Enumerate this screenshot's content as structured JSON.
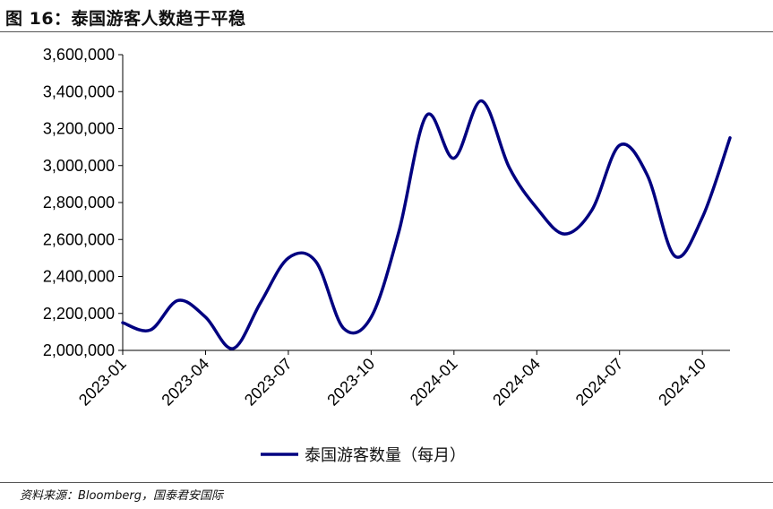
{
  "figure": {
    "title": "图 16：泰国游客人数趋于平稳",
    "source": "资料来源：Bloomberg，国泰君安国际"
  },
  "chart_data": {
    "type": "line",
    "title": "",
    "xlabel": "",
    "ylabel": "",
    "ylim": [
      2000000,
      3600000
    ],
    "yticks": [
      2000000,
      2200000,
      2400000,
      2600000,
      2800000,
      3000000,
      3200000,
      3400000,
      3600000
    ],
    "ytick_labels": [
      "2,000,000",
      "2,200,000",
      "2,400,000",
      "2,600,000",
      "2,800,000",
      "3,000,000",
      "3,200,000",
      "3,400,000",
      "3,600,000"
    ],
    "xtick_labels": [
      "2023-01",
      "2023-04",
      "2023-07",
      "2023-10",
      "2024-01",
      "2024-04",
      "2024-07",
      "2024-10"
    ],
    "x": [
      "2023-01",
      "2023-02",
      "2023-03",
      "2023-04",
      "2023-05",
      "2023-06",
      "2023-07",
      "2023-08",
      "2023-09",
      "2023-10",
      "2023-11",
      "2023-12",
      "2024-01",
      "2024-02",
      "2024-03",
      "2024-04",
      "2024-05",
      "2024-06",
      "2024-07",
      "2024-08",
      "2024-09",
      "2024-10",
      "2024-11"
    ],
    "series": [
      {
        "name": "泰国游客数量（每月）",
        "color": "#000080",
        "values": [
          2150000,
          2110000,
          2270000,
          2180000,
          2010000,
          2260000,
          2500000,
          2480000,
          2120000,
          2180000,
          2640000,
          3270000,
          3040000,
          3350000,
          2990000,
          2770000,
          2630000,
          2760000,
          3110000,
          2950000,
          2510000,
          2720000,
          3150000
        ]
      }
    ],
    "grid": false,
    "legend_position": "bottom"
  }
}
